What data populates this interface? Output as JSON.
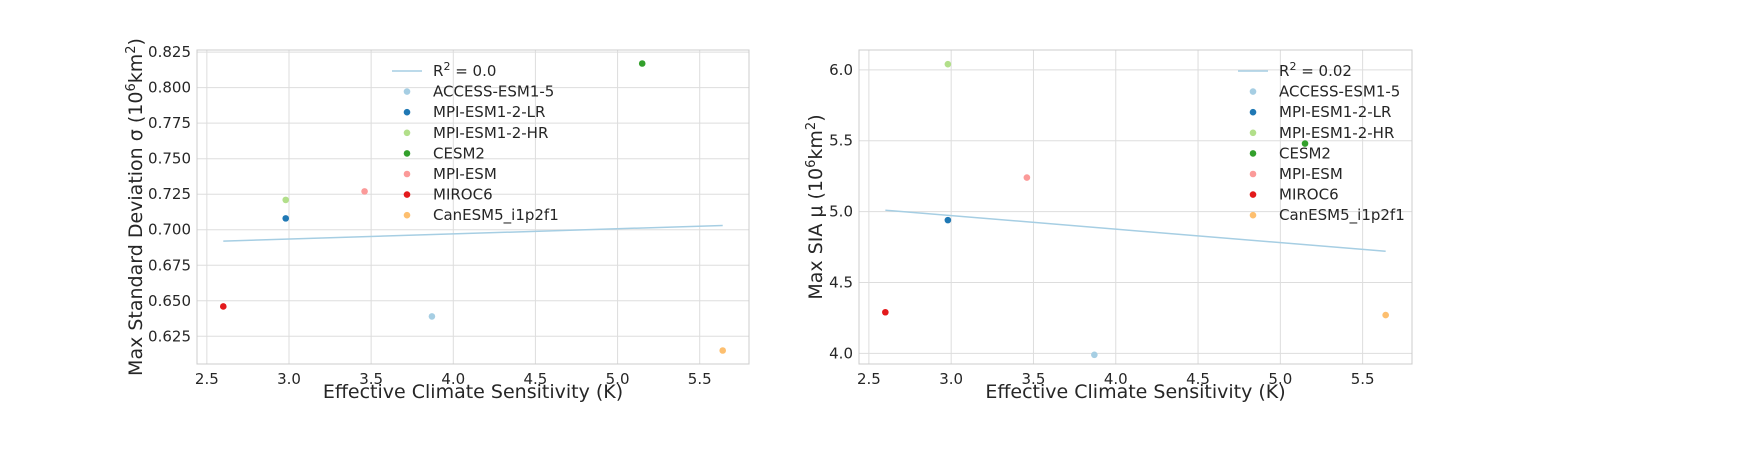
{
  "chart_data": [
    {
      "type": "scatter",
      "xlabel": "Effective Climate Sensitivity (K)",
      "ylabel_text": "Max Standard Deviation σ (",
      "ylabel_unit": "10",
      "ylabel_unit_exp": "6",
      "ylabel_unit_tail": "km",
      "ylabel_unit_exp2": "2",
      "ylabel_close": ")",
      "xlim": [
        2.44,
        5.8
      ],
      "ylim": [
        0.6055,
        0.8265
      ],
      "xticks": [
        2.5,
        3.0,
        3.5,
        4.0,
        4.5,
        5.0,
        5.5
      ],
      "xtick_labels": [
        "2.5",
        "3.0",
        "3.5",
        "4.0",
        "4.5",
        "5.0",
        "5.5"
      ],
      "yticks": [
        0.625,
        0.65,
        0.675,
        0.7,
        0.725,
        0.75,
        0.775,
        0.8,
        0.825
      ],
      "ytick_labels": [
        "0.625",
        "0.650",
        "0.675",
        "0.700",
        "0.725",
        "0.750",
        "0.775",
        "0.800",
        "0.825"
      ],
      "grid": true,
      "legend_placement": "upper-center",
      "fit_line": {
        "label_prefix": "R",
        "label_exp": "2",
        "label_suffix": " = 0.0",
        "x": [
          2.6,
          5.64
        ],
        "y": [
          0.692,
          0.703
        ],
        "color": "#a6cee3"
      },
      "series": [
        {
          "name": "ACCESS-ESM1-5",
          "color": "#a6cee3",
          "x": 3.87,
          "y": 0.639
        },
        {
          "name": "MPI-ESM1-2-LR",
          "color": "#1f78b4",
          "x": 2.98,
          "y": 0.708
        },
        {
          "name": "MPI-ESM1-2-HR",
          "color": "#b2df8a",
          "x": 2.98,
          "y": 0.721
        },
        {
          "name": "CESM2",
          "color": "#33a02c",
          "x": 5.15,
          "y": 0.817
        },
        {
          "name": "MPI-ESM",
          "color": "#fb9a99",
          "x": 3.46,
          "y": 0.727
        },
        {
          "name": "MIROC6",
          "color": "#e31a1c",
          "x": 2.6,
          "y": 0.646
        },
        {
          "name": "CanESM5_i1p2f1",
          "color": "#fdbf6f",
          "x": 5.64,
          "y": 0.615
        }
      ]
    },
    {
      "type": "scatter",
      "xlabel": "Effective Climate Sensitivity (K)",
      "ylabel_text": "Max SIA μ (",
      "ylabel_unit": "10",
      "ylabel_unit_exp": "6",
      "ylabel_unit_tail": "km",
      "ylabel_unit_exp2": "2",
      "ylabel_close": ")",
      "xlim": [
        2.44,
        5.8
      ],
      "ylim": [
        3.925,
        6.14
      ],
      "xticks": [
        2.5,
        3.0,
        3.5,
        4.0,
        4.5,
        5.0,
        5.5
      ],
      "xtick_labels": [
        "2.5",
        "3.0",
        "3.5",
        "4.0",
        "4.5",
        "5.0",
        "5.5"
      ],
      "yticks": [
        4.0,
        4.5,
        5.0,
        5.5,
        6.0
      ],
      "ytick_labels": [
        "4.0",
        "4.5",
        "5.0",
        "5.5",
        "6.0"
      ],
      "grid": true,
      "legend_placement": "upper-right",
      "fit_line": {
        "label_prefix": "R",
        "label_exp": "2",
        "label_suffix": " = 0.02",
        "x": [
          2.6,
          5.64
        ],
        "y": [
          5.01,
          4.72
        ],
        "color": "#a6cee3"
      },
      "series": [
        {
          "name": "ACCESS-ESM1-5",
          "color": "#a6cee3",
          "x": 3.87,
          "y": 3.99
        },
        {
          "name": "MPI-ESM1-2-LR",
          "color": "#1f78b4",
          "x": 2.98,
          "y": 4.94
        },
        {
          "name": "MPI-ESM1-2-HR",
          "color": "#b2df8a",
          "x": 2.98,
          "y": 6.04
        },
        {
          "name": "CESM2",
          "color": "#33a02c",
          "x": 5.15,
          "y": 5.48
        },
        {
          "name": "MPI-ESM",
          "color": "#fb9a99",
          "x": 3.46,
          "y": 5.24
        },
        {
          "name": "MIROC6",
          "color": "#e31a1c",
          "x": 2.6,
          "y": 4.29
        },
        {
          "name": "CanESM5_i1p2f1",
          "color": "#fdbf6f",
          "x": 5.64,
          "y": 4.27
        }
      ]
    }
  ]
}
